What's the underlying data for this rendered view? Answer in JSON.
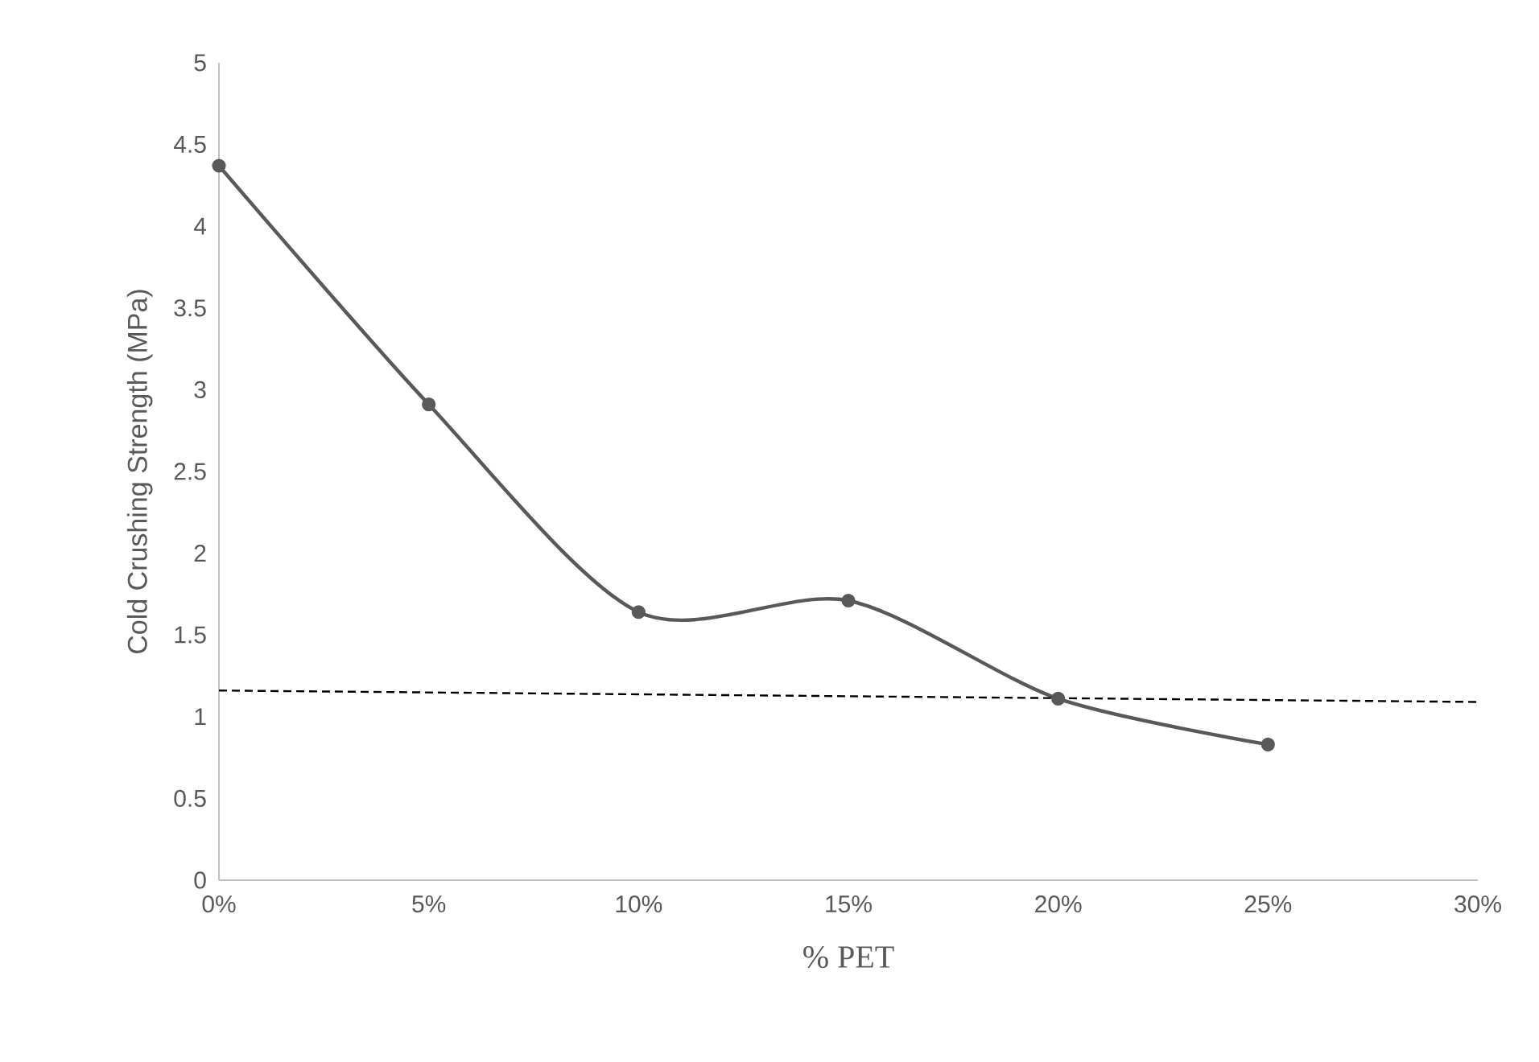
{
  "chart_data": {
    "type": "line",
    "xlabel": "% PET",
    "ylabel": "Cold Crushing Strength (MPa)",
    "xlim": [
      0,
      30
    ],
    "ylim": [
      0,
      5
    ],
    "xticks": [
      {
        "value": 0,
        "label": "0%"
      },
      {
        "value": 5,
        "label": "5%"
      },
      {
        "value": 10,
        "label": "10%"
      },
      {
        "value": 15,
        "label": "15%"
      },
      {
        "value": 20,
        "label": "20%"
      },
      {
        "value": 25,
        "label": "25%"
      },
      {
        "value": 30,
        "label": "30%"
      }
    ],
    "yticks": [
      0,
      0.5,
      1,
      1.5,
      2,
      2.5,
      3,
      3.5,
      4,
      4.5,
      5
    ],
    "grid": false,
    "series": [
      {
        "x": [
          0,
          5,
          10,
          15,
          20,
          25
        ],
        "values": [
          4.37,
          2.91,
          1.64,
          1.71,
          1.11,
          0.83
        ],
        "color": "#595959",
        "marker": "circle",
        "line_style": "solid"
      },
      {
        "x": [
          0,
          30
        ],
        "values": [
          1.16,
          1.09
        ],
        "color": "#000000",
        "marker": "none",
        "line_style": "dashed"
      }
    ]
  }
}
